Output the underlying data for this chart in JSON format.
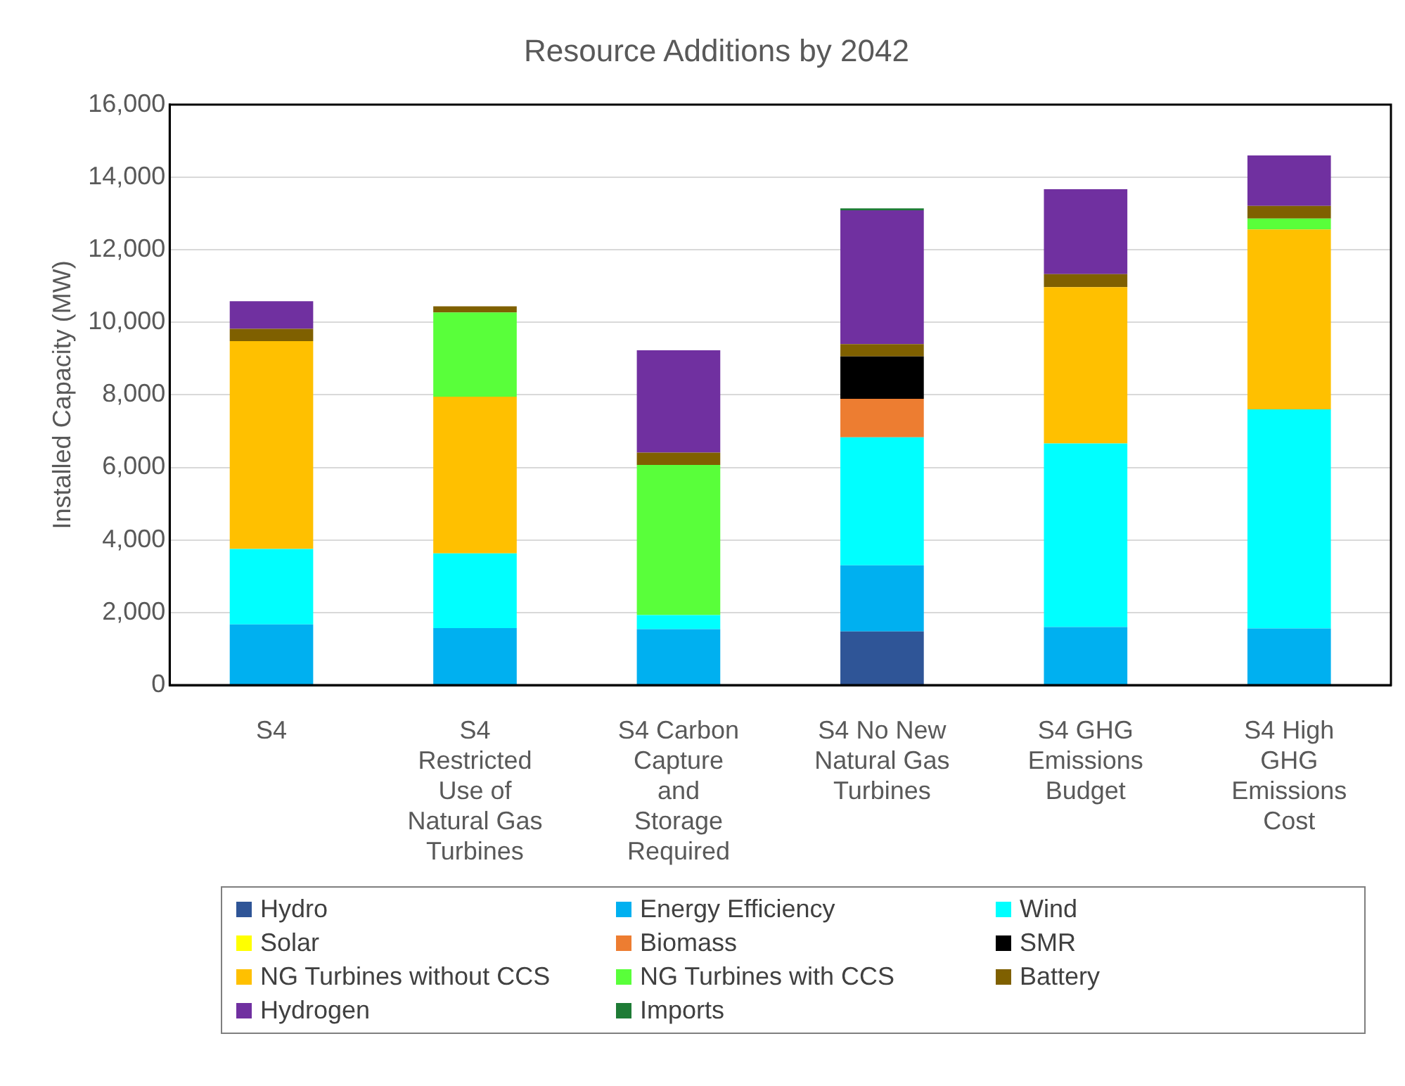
{
  "chart_data": {
    "type": "bar",
    "title": "Resource Additions by 2042",
    "ylabel": "Installed Capacity (MW)",
    "stacked": true,
    "grid": "y",
    "legend": "bottom",
    "categories": [
      "S4",
      "S4 Restricted Use of Natural Gas Turbines",
      "S4 Carbon Capture and Storage Required",
      "S4 No New Natural Gas Turbines",
      "S4 GHG Emissions Budget",
      "S4 High GHG Emissions Cost"
    ],
    "ylim": [
      0,
      16000
    ],
    "yticks": [
      {
        "value": 0,
        "label": "0"
      },
      {
        "value": 2000,
        "label": "2,000"
      },
      {
        "value": 4000,
        "label": "4,000"
      },
      {
        "value": 6000,
        "label": "6,000"
      },
      {
        "value": 8000,
        "label": "8,000"
      },
      {
        "value": 10000,
        "label": "10,000"
      },
      {
        "value": 12000,
        "label": "12,000"
      },
      {
        "value": 14000,
        "label": "14,000"
      },
      {
        "value": 16000,
        "label": "16,000"
      }
    ],
    "series": [
      {
        "name": "Hydro",
        "color": "#2f5597",
        "values": [
          0,
          0,
          0,
          1480,
          0,
          0
        ]
      },
      {
        "name": "Energy Efficiency",
        "color": "#00b0f0",
        "values": [
          1670,
          1570,
          1540,
          1820,
          1600,
          1560
        ]
      },
      {
        "name": "Wind",
        "color": "#00ffff",
        "values": [
          2080,
          2060,
          390,
          3530,
          5060,
          6040
        ]
      },
      {
        "name": "Solar",
        "color": "#ffff00",
        "values": [
          0,
          0,
          0,
          0,
          0,
          0
        ]
      },
      {
        "name": "Biomass",
        "color": "#ed7d31",
        "values": [
          0,
          0,
          0,
          1060,
          0,
          0
        ]
      },
      {
        "name": "SMR",
        "color": "#000000",
        "values": [
          0,
          0,
          0,
          1170,
          0,
          0
        ]
      },
      {
        "name": "NG Turbines without CCS",
        "color": "#ffc000",
        "values": [
          5730,
          4320,
          0,
          0,
          4310,
          4960
        ]
      },
      {
        "name": "NG Turbines with CCS",
        "color": "#59ff3a",
        "values": [
          0,
          2320,
          4140,
          0,
          0,
          300
        ]
      },
      {
        "name": "Battery",
        "color": "#7f6000",
        "values": [
          340,
          170,
          340,
          340,
          360,
          350
        ]
      },
      {
        "name": "Hydrogen",
        "color": "#7030a0",
        "values": [
          760,
          0,
          2820,
          3690,
          2340,
          1390
        ]
      },
      {
        "name": "Imports",
        "color": "#1e7b35",
        "values": [
          0,
          0,
          0,
          50,
          0,
          0
        ]
      }
    ]
  }
}
